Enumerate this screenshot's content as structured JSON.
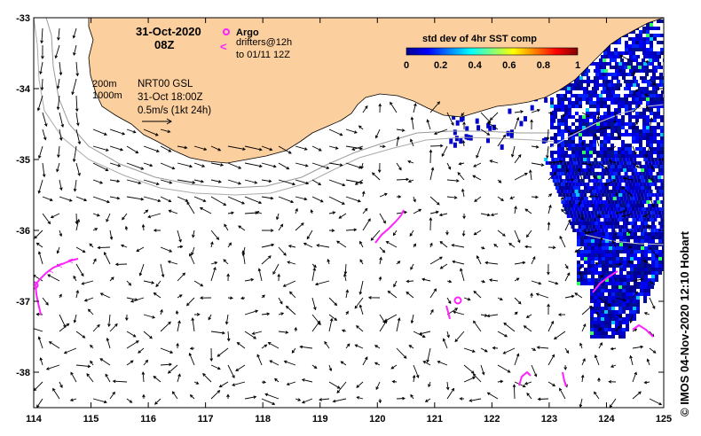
{
  "map": {
    "date": "31-Oct-2020",
    "hour": "08Z",
    "product": "NRT00 GSL",
    "product_time": "31-Oct 18:00Z",
    "scale_label": "0.5m/s (1kt 24h)",
    "isobath_labels": [
      "200m",
      "1000m"
    ],
    "colors": {
      "land": "#fbcf9e",
      "ocean": "#ffffff",
      "drifters": "#ff22ff",
      "isobath": "#999999"
    }
  },
  "legend": {
    "argo_label": "Argo",
    "drifter_label_1": "drifters@12h",
    "drifter_label_2": "to 01/11 12Z"
  },
  "colorbar": {
    "title": "std dev of 4hr SST comp",
    "ticks": [
      "0",
      "0.2",
      "0.4",
      "0.6",
      "0.8",
      "1"
    ],
    "colormap": "jet"
  },
  "axes": {
    "x_ticks": [
      "114",
      "115",
      "116",
      "117",
      "118",
      "119",
      "120",
      "121",
      "122",
      "123",
      "124",
      "125"
    ],
    "y_ticks": [
      "-33",
      "-34",
      "-35",
      "-36",
      "-37",
      "-38"
    ],
    "x_range": [
      114,
      125
    ],
    "y_range": [
      -38.5,
      -33
    ]
  },
  "credit": "© IMOS 04-Nov-2020 12:10 Hobart"
}
